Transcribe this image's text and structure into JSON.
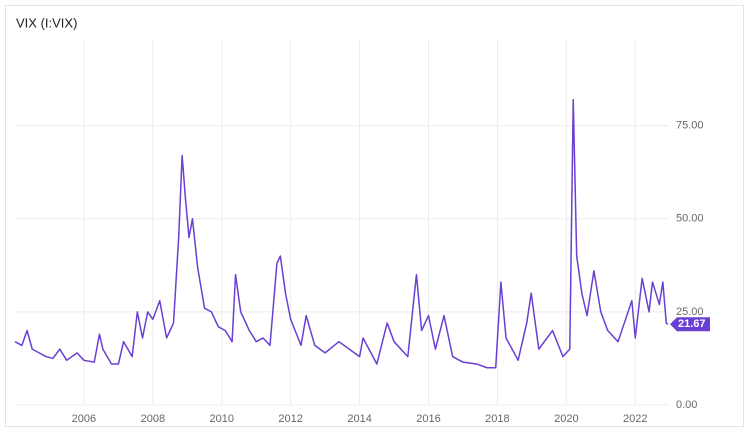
{
  "chart_data": {
    "type": "line",
    "title": "VIX (I:VIX)",
    "color": "#6a3fd3",
    "grid": true,
    "x": [
      2004.0,
      2004.2,
      2004.35,
      2004.5,
      2004.7,
      2004.9,
      2005.1,
      2005.3,
      2005.5,
      2005.8,
      2006.0,
      2006.3,
      2006.45,
      2006.55,
      2006.8,
      2007.0,
      2007.15,
      2007.4,
      2007.55,
      2007.7,
      2007.85,
      2008.0,
      2008.2,
      2008.4,
      2008.6,
      2008.75,
      2008.85,
      2008.95,
      2009.05,
      2009.15,
      2009.3,
      2009.5,
      2009.7,
      2009.9,
      2010.1,
      2010.3,
      2010.4,
      2010.55,
      2010.8,
      2011.0,
      2011.2,
      2011.4,
      2011.6,
      2011.7,
      2011.85,
      2012.0,
      2012.3,
      2012.45,
      2012.7,
      2013.0,
      2013.4,
      2013.7,
      2014.0,
      2014.1,
      2014.5,
      2014.8,
      2015.0,
      2015.4,
      2015.65,
      2015.8,
      2016.0,
      2016.2,
      2016.45,
      2016.7,
      2017.0,
      2017.4,
      2017.7,
      2017.95,
      2018.1,
      2018.25,
      2018.6,
      2018.85,
      2018.98,
      2019.2,
      2019.6,
      2019.9,
      2020.1,
      2020.2,
      2020.3,
      2020.45,
      2020.6,
      2020.8,
      2021.0,
      2021.2,
      2021.5,
      2021.9,
      2022.0,
      2022.2,
      2022.4,
      2022.5,
      2022.7,
      2022.8,
      2022.9,
      2022.95
    ],
    "values": [
      17,
      16,
      20,
      15,
      14,
      13,
      12.5,
      15,
      12,
      14,
      12,
      11.5,
      19,
      15,
      11,
      11,
      17,
      13,
      25,
      18,
      25,
      23,
      28,
      18,
      22,
      45,
      67,
      55,
      45,
      50,
      37,
      26,
      25,
      21,
      20,
      17,
      35,
      25,
      20,
      17,
      18,
      16,
      38,
      40,
      30,
      23,
      16,
      24,
      16,
      14,
      17,
      15,
      13,
      18,
      11,
      22,
      17,
      13,
      35,
      20,
      24,
      15,
      24,
      13,
      11.5,
      11,
      10,
      10,
      33,
      18,
      12,
      22,
      30,
      15,
      20,
      13,
      15,
      82,
      40,
      30,
      24,
      36,
      25,
      20,
      17,
      28,
      18,
      34,
      25,
      33,
      27,
      33,
      22,
      21.67
    ],
    "xlim": [
      2004.0,
      2022.95
    ],
    "ylim": [
      0,
      98
    ],
    "xticks": [
      2006,
      2008,
      2010,
      2012,
      2014,
      2016,
      2018,
      2020,
      2022
    ],
    "yticks": [
      {
        "value": 0,
        "label": "0.00"
      },
      {
        "value": 25,
        "label": "25.00"
      },
      {
        "value": 50,
        "label": "50.00"
      },
      {
        "value": 75,
        "label": "75.00"
      }
    ]
  }
}
